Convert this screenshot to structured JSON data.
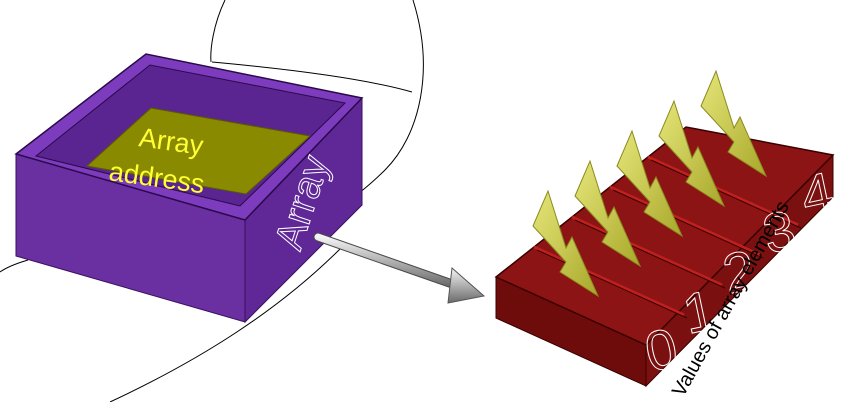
{
  "diagram": {
    "array_box": {
      "address_label_line1": "Array",
      "address_label_line2": "address",
      "side_label": "Array"
    },
    "elements_label": "Values of array elements",
    "element_indices": [
      "0",
      "1",
      "2",
      "3",
      "4"
    ],
    "colors": {
      "array_box": "#6a2fa0",
      "array_box_side": "#5a2590",
      "array_box_top": "#4b1d7a",
      "address_panel": "#8a8a00",
      "address_text": "#ffff33",
      "elements_box": "#7a1010",
      "elements_box_top": "#8a1515",
      "pointer_arrow": "#c8c8c8",
      "value_arrows": "#c8c83a"
    }
  }
}
